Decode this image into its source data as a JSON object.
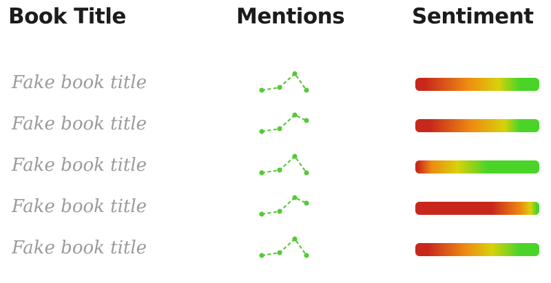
{
  "headers": {
    "book_title": "Book Title",
    "mentions": "Mentions",
    "sentiment": "Sentiment"
  },
  "colors": {
    "negative": "#c8281b",
    "mixed_orange": "#ee8a12",
    "neutral_yellow": "#d9d10a",
    "positive": "#4bd428",
    "sparkline": "#56c936"
  },
  "rows": [
    {
      "title": "Fake book title",
      "mentions": [
        1,
        2,
        7,
        1
      ],
      "sentiment_stops": [
        0,
        0.08,
        0.42,
        0.67,
        0.84,
        1
      ]
    },
    {
      "title": "Fake book title",
      "mentions": [
        1,
        2,
        7,
        5
      ],
      "sentiment_stops": [
        0,
        0.12,
        0.45,
        0.72,
        0.84,
        1
      ]
    },
    {
      "title": "Fake book title",
      "mentions": [
        1,
        2,
        7,
        1
      ],
      "sentiment_stops": [
        0,
        0.02,
        0.13,
        0.34,
        0.58,
        1
      ]
    },
    {
      "title": "Fake book title",
      "mentions": [
        1,
        2,
        7,
        5
      ],
      "sentiment_stops": [
        0,
        0.62,
        0.85,
        0.93,
        0.98,
        1
      ]
    },
    {
      "title": "Fake book title",
      "mentions": [
        1,
        2,
        7,
        1
      ],
      "sentiment_stops": [
        0,
        0.1,
        0.4,
        0.62,
        0.84,
        1
      ]
    }
  ]
}
